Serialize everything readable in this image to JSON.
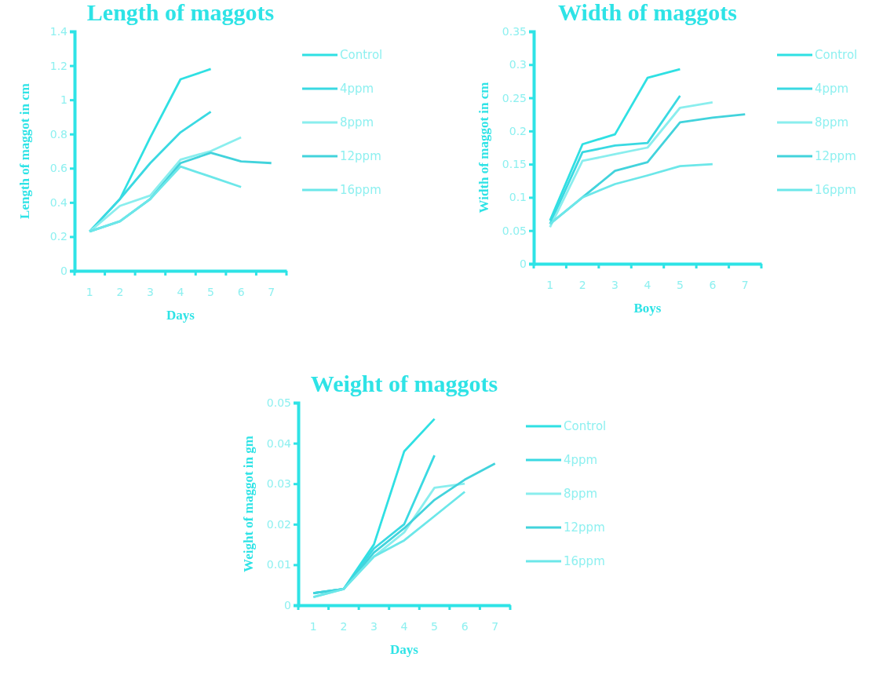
{
  "chart_data": [
    {
      "type": "line",
      "title": "Length of maggots",
      "xlabel": "Days",
      "ylabel": "Length of maggot in cm",
      "categories": [
        "1",
        "2",
        "3",
        "4",
        "5",
        "6",
        "7"
      ],
      "ylim": [
        0,
        1.4
      ],
      "yticks": [
        0,
        0.2,
        0.4,
        0.6,
        0.8,
        1,
        1.2,
        1.4
      ],
      "legend": "right",
      "grid": false,
      "marker": "none",
      "series": [
        {
          "name": "Control",
          "color": "#2fe0e3",
          "values": [
            0.23,
            0.42,
            0.78,
            1.12,
            1.18,
            null,
            null
          ]
        },
        {
          "name": "4ppm",
          "color": "#3ad9e2",
          "values": [
            0.23,
            0.42,
            0.63,
            0.81,
            0.93,
            null,
            null
          ]
        },
        {
          "name": "8ppm",
          "color": "#8aeeee",
          "values": [
            0.23,
            0.38,
            0.44,
            0.65,
            0.7,
            0.78,
            null
          ]
        },
        {
          "name": "12ppm",
          "color": "#42d3dc",
          "values": [
            0.23,
            0.29,
            0.42,
            0.63,
            0.69,
            0.64,
            0.63
          ]
        },
        {
          "name": "16ppm",
          "color": "#6ce7e9",
          "values": [
            0.23,
            0.29,
            0.42,
            0.61,
            0.55,
            0.49,
            null
          ]
        }
      ]
    },
    {
      "type": "line",
      "title": "Width of maggots",
      "xlabel": "Boys",
      "ylabel": "Width of maggot in cm",
      "categories": [
        "1",
        "2",
        "3",
        "4",
        "5",
        "6",
        "7"
      ],
      "ylim": [
        0,
        0.35
      ],
      "yticks": [
        0,
        0.05,
        0.1,
        0.15,
        0.2,
        0.25,
        0.3,
        0.35
      ],
      "legend": "right",
      "grid": false,
      "marker": "none",
      "series": [
        {
          "name": "Control",
          "color": "#2fe0e3",
          "values": [
            0.065,
            0.18,
            0.195,
            0.28,
            0.293,
            null,
            null
          ]
        },
        {
          "name": "4ppm",
          "color": "#3ad9e2",
          "values": [
            0.06,
            0.168,
            0.178,
            0.182,
            0.253,
            null,
            null
          ]
        },
        {
          "name": "8ppm",
          "color": "#8aeeee",
          "values": [
            0.055,
            0.155,
            0.165,
            0.175,
            0.235,
            0.243,
            null
          ]
        },
        {
          "name": "12ppm",
          "color": "#42d3dc",
          "values": [
            0.06,
            0.1,
            0.14,
            0.153,
            0.213,
            0.22,
            0.225
          ]
        },
        {
          "name": "16ppm",
          "color": "#6ce7e9",
          "values": [
            0.06,
            0.1,
            0.12,
            0.133,
            0.147,
            0.15,
            null
          ]
        }
      ]
    },
    {
      "type": "line",
      "title": "Weight of maggots",
      "xlabel": "Days",
      "ylabel": "Weight of maggot in gm",
      "categories": [
        "1",
        "2",
        "3",
        "4",
        "5",
        "6",
        "7"
      ],
      "ylim": [
        0,
        0.05
      ],
      "yticks": [
        0,
        0.01,
        0.02,
        0.03,
        0.04,
        0.05
      ],
      "legend": "right",
      "grid": false,
      "marker": "none",
      "series": [
        {
          "name": "Control",
          "color": "#2fe0e3",
          "values": [
            0.003,
            0.004,
            0.015,
            0.038,
            0.046,
            null,
            null
          ]
        },
        {
          "name": "4ppm",
          "color": "#3ad9e2",
          "values": [
            0.003,
            0.004,
            0.014,
            0.02,
            0.037,
            null,
            null
          ]
        },
        {
          "name": "8ppm",
          "color": "#8aeeee",
          "values": [
            0.002,
            0.004,
            0.012,
            0.018,
            0.029,
            0.03,
            null
          ]
        },
        {
          "name": "12ppm",
          "color": "#42d3dc",
          "values": [
            0.003,
            0.004,
            0.013,
            0.019,
            0.026,
            0.031,
            0.035
          ]
        },
        {
          "name": "16ppm",
          "color": "#6ce7e9",
          "values": [
            0.002,
            0.004,
            0.012,
            0.016,
            0.022,
            0.028,
            null
          ]
        }
      ]
    }
  ]
}
